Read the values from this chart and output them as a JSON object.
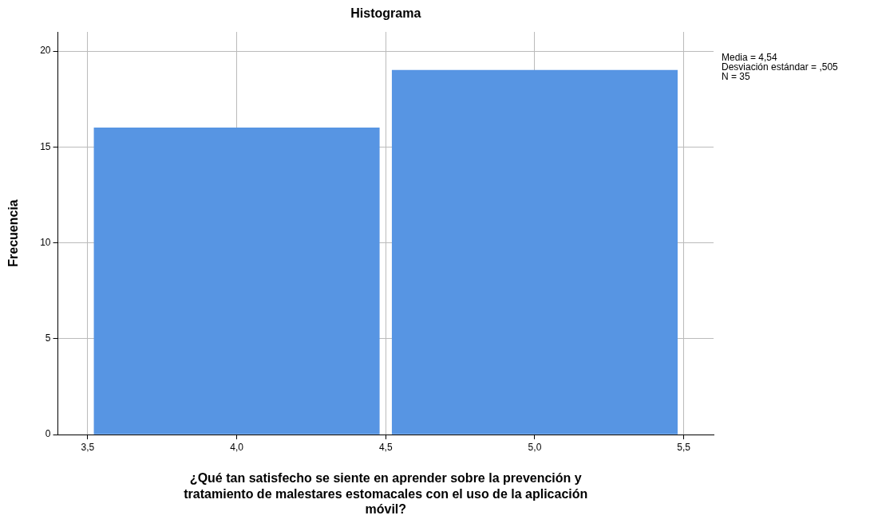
{
  "chart_data": {
    "type": "histogram",
    "title": "Histograma",
    "xlabel": "¿Qué tan satisfecho se siente en aprender sobre la prevención y tratamiento de malestares estomacales con el uso de la aplicación móvil?",
    "ylabel": "Frecuencia",
    "bins": [
      3.5,
      4.5,
      5.5
    ],
    "values": [
      16,
      19
    ],
    "color": "#5795e3",
    "xlim": [
      3.4,
      5.6
    ],
    "xticks": [
      {
        "value": 3.5,
        "label": "3,5"
      },
      {
        "value": 4.0,
        "label": "4,0"
      },
      {
        "value": 4.5,
        "label": "4,5"
      },
      {
        "value": 5.0,
        "label": "5,0"
      },
      {
        "value": 5.5,
        "label": "5,5"
      }
    ],
    "ylim": [
      0,
      21
    ],
    "yticks": [
      0,
      5,
      10,
      15,
      20
    ],
    "grid": true,
    "legend": false,
    "annotations": [
      "Media = 4,54",
      "Desviación estándar = ,505",
      "N = 35"
    ]
  }
}
